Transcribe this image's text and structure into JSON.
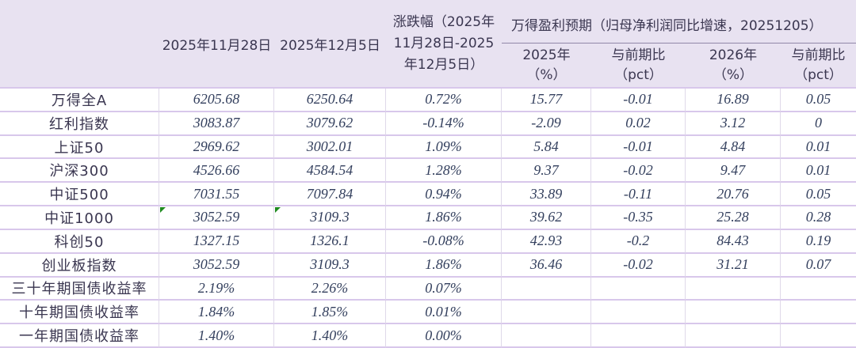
{
  "table": {
    "header": {
      "date1": "2025年11月28日",
      "date2": "2025年12月5日",
      "change": "涨跌幅（2025年\n11月28日-2025\n年12月5日）",
      "group": "万得盈利预期（归母净利润同比增速，20251205）",
      "sub": [
        "2025年\n（%）",
        "与前期比\n（pct）",
        "2026年\n（%）",
        "与前期比\n（pct）"
      ]
    },
    "rows": [
      {
        "label": "万得全A",
        "d1": "6205.68",
        "d2": "6250.64",
        "chg": "0.72%",
        "e25": "15.77",
        "p25": "-0.01",
        "e26": "16.89",
        "p26": "0.05"
      },
      {
        "label": "红利指数",
        "d1": "3083.87",
        "d2": "3079.62",
        "chg": "-0.14%",
        "e25": "-2.09",
        "p25": "0.02",
        "e26": "3.12",
        "p26": "0"
      },
      {
        "label": "上证50",
        "d1": "2969.62",
        "d2": "3002.01",
        "chg": "1.09%",
        "e25": "5.84",
        "p25": "-0.01",
        "e26": "4.84",
        "p26": "0.01"
      },
      {
        "label": "沪深300",
        "d1": "4526.66",
        "d2": "4584.54",
        "chg": "1.28%",
        "e25": "9.37",
        "p25": "-0.02",
        "e26": "9.47",
        "p26": "0.01"
      },
      {
        "label": "中证500",
        "d1": "7031.55",
        "d2": "7097.84",
        "chg": "0.94%",
        "e25": "33.89",
        "p25": "-0.11",
        "e26": "20.76",
        "p26": "0.05"
      },
      {
        "label": "中证1000",
        "d1": "3052.59",
        "d2": "3109.3",
        "chg": "1.86%",
        "e25": "39.62",
        "p25": "-0.35",
        "e26": "25.28",
        "p26": "0.28",
        "flag_d1": true,
        "flag_d2": true
      },
      {
        "label": "科创50",
        "d1": "1327.15",
        "d2": "1326.1",
        "chg": "-0.08%",
        "e25": "42.93",
        "p25": "-0.2",
        "e26": "84.43",
        "p26": "0.19"
      },
      {
        "label": "创业板指数",
        "d1": "3052.59",
        "d2": "3109.3",
        "chg": "1.86%",
        "e25": "36.46",
        "p25": "-0.02",
        "e26": "31.21",
        "p26": "0.07"
      },
      {
        "label": "三十年期国债收益率",
        "d1": "2.19%",
        "d2": "2.26%",
        "chg": "0.07%",
        "e25": "",
        "p25": "",
        "e26": "",
        "p26": ""
      },
      {
        "label": "十年期国债收益率",
        "d1": "1.84%",
        "d2": "1.85%",
        "chg": "0.01%",
        "e25": "",
        "p25": "",
        "e26": "",
        "p26": ""
      },
      {
        "label": "一年期国债收益率",
        "d1": "1.40%",
        "d2": "1.40%",
        "chg": "0.00%",
        "e25": "",
        "p25": "",
        "e26": "",
        "p26": ""
      }
    ]
  },
  "colors": {
    "header_background": "#e8e2f1",
    "row_border": "#d8c7eb",
    "column_border": "#dfd9e9",
    "group_underline": "#9186a8",
    "label_text": "#3a3650",
    "number_text": "#34405e",
    "flag_green": "#1e8a1e"
  }
}
